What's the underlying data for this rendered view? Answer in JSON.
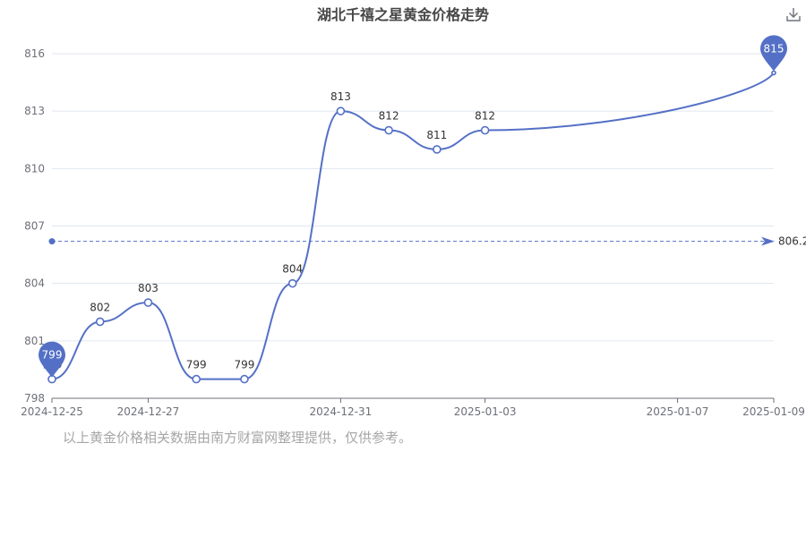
{
  "footnote": "以上黄金价格相关数据由南方财富网整理提供，仅供参考。",
  "colors": {
    "series": "#5470c6",
    "axis": "#6e7079",
    "grid": "#e0e6f1",
    "label": "#333333",
    "footnote": "#a6a6a6"
  },
  "icons": {
    "download": "download-icon"
  },
  "chart_data": {
    "type": "line",
    "title": "湖北千禧之星黄金价格走势",
    "x": [
      "2024-12-25",
      "2024-12-26",
      "2024-12-27",
      "2024-12-28",
      "2024-12-29",
      "2024-12-30",
      "2024-12-31",
      "2025-01-01",
      "2025-01-02",
      "2025-01-03",
      "2025-01-04",
      "2025-01-05",
      "2025-01-06",
      "2025-01-07",
      "2025-01-08",
      "2025-01-09"
    ],
    "x_tick_labels": [
      "2024-12-25",
      "2024-12-27",
      "2024-12-31",
      "2025-01-03",
      "2025-01-07",
      "2025-01-09"
    ],
    "points": [
      {
        "x": "2024-12-25",
        "y": 799,
        "label": "799"
      },
      {
        "x": "2024-12-26",
        "y": 802,
        "label": "802"
      },
      {
        "x": "2024-12-27",
        "y": 803,
        "label": "803"
      },
      {
        "x": "2024-12-28",
        "y": 799,
        "label": "799"
      },
      {
        "x": "2024-12-29",
        "y": 799,
        "label": "799"
      },
      {
        "x": "2024-12-30",
        "y": 804,
        "label": "804"
      },
      {
        "x": "2024-12-31",
        "y": 813,
        "label": "813"
      },
      {
        "x": "2025-01-01",
        "y": 812,
        "label": "812"
      },
      {
        "x": "2025-01-02",
        "y": 811,
        "label": "811"
      },
      {
        "x": "2025-01-03",
        "y": 812,
        "label": "812"
      },
      {
        "x": "2025-01-09",
        "y": 815,
        "label": ""
      }
    ],
    "y_ticks": [
      798,
      801,
      804,
      807,
      810,
      813,
      816
    ],
    "ylim": [
      798,
      816
    ],
    "mark_line": {
      "type": "average",
      "value": 806.2,
      "label": "806.2"
    },
    "mark_points": [
      {
        "type": "min",
        "value": 799,
        "label": "799",
        "at": "2024-12-25"
      },
      {
        "type": "max",
        "value": 815,
        "label": "815",
        "at": "2025-01-09"
      }
    ],
    "grid": true,
    "smooth": true
  }
}
